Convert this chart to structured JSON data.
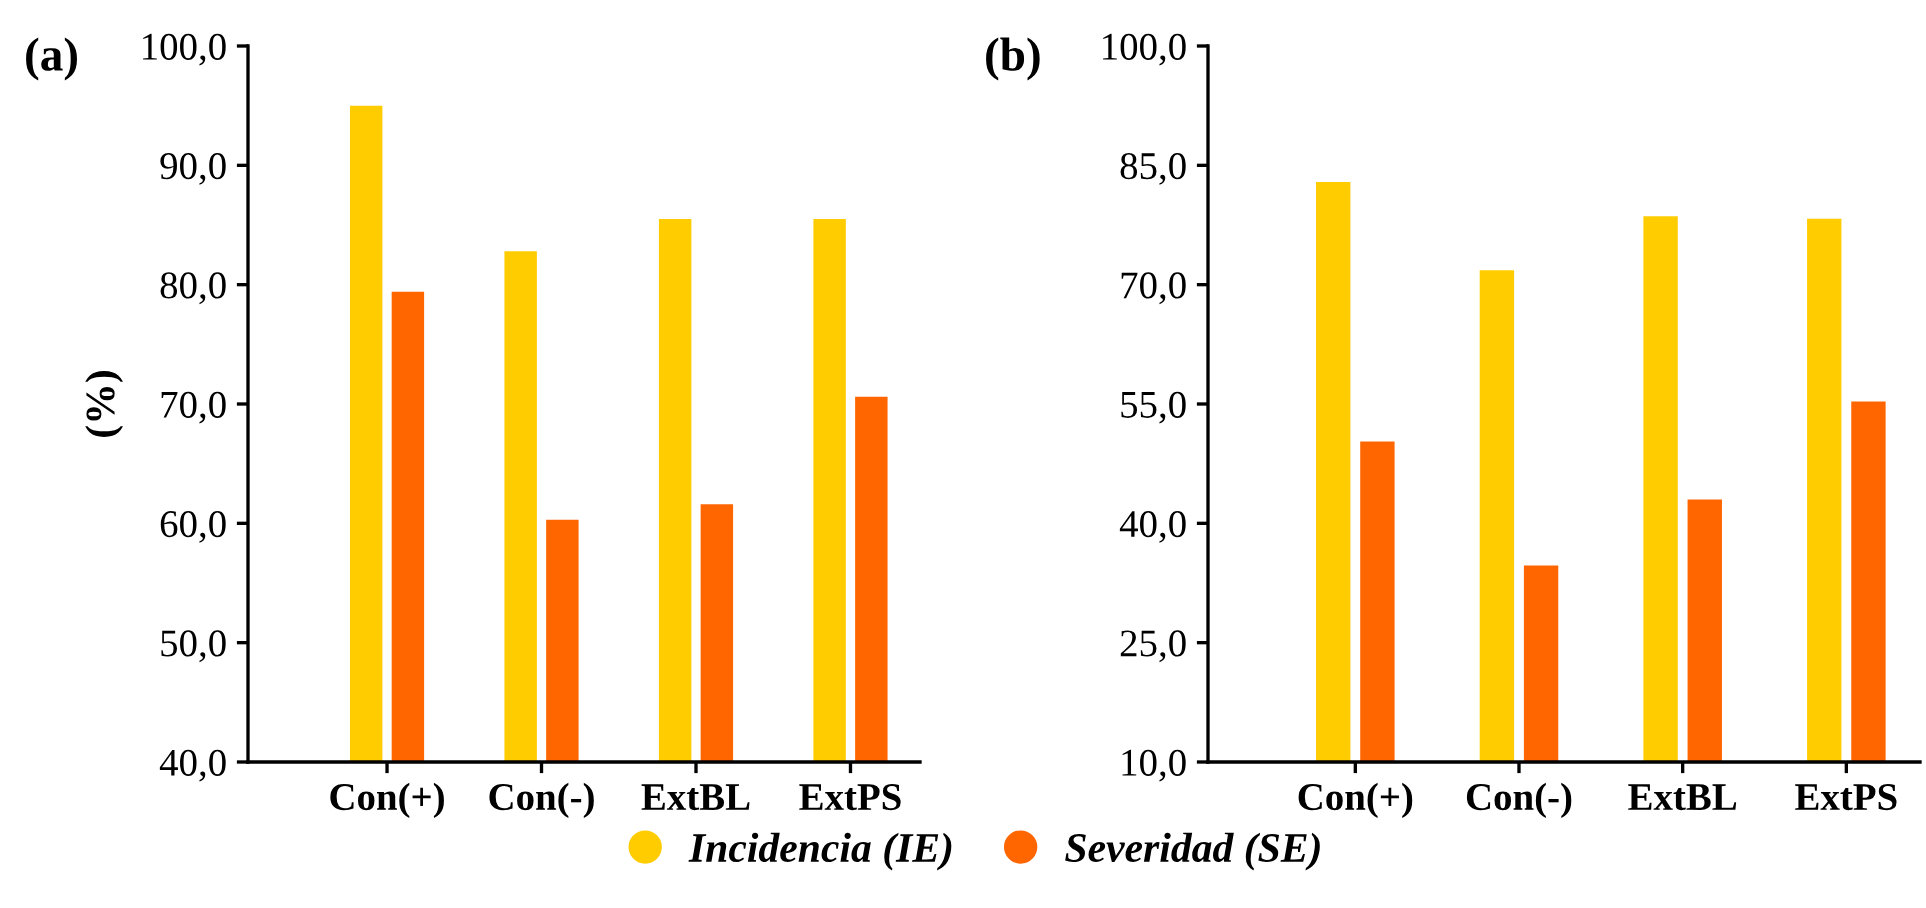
{
  "chart_data": [
    {
      "type": "bar",
      "title": "(a)",
      "ylabel": "(%)",
      "categories": [
        "Con(+)",
        "Con(-)",
        "ExtBL",
        "ExtPS"
      ],
      "series": [
        {
          "name": "Incidencia (IE)",
          "color": "#ffcc00",
          "values": [
            95.0,
            82.8,
            85.5,
            85.5
          ]
        },
        {
          "name": "Severidad (SE)",
          "color": "#ff6600",
          "values": [
            79.4,
            60.3,
            61.6,
            70.6
          ]
        }
      ],
      "ylim": [
        40,
        100
      ],
      "yticks": [
        {
          "value": 40,
          "label": "40,0"
        },
        {
          "value": 50,
          "label": "50,0"
        },
        {
          "value": 60,
          "label": "60,0"
        },
        {
          "value": 70,
          "label": "70,0"
        },
        {
          "value": 80,
          "label": "80,0"
        },
        {
          "value": 90,
          "label": "90,0"
        },
        {
          "value": 100,
          "label": "100,0"
        }
      ],
      "grid": false,
      "legend": "bottom"
    },
    {
      "type": "bar",
      "title": "(b)",
      "categories": [
        "Con(+)",
        "Con(-)",
        "ExtBL",
        "ExtPS"
      ],
      "series": [
        {
          "name": "Incidencia (IE)",
          "color": "#ffcc00",
          "values": [
            82.9,
            71.8,
            78.6,
            78.3
          ]
        },
        {
          "name": "Severidad (SE)",
          "color": "#ff6600",
          "values": [
            50.3,
            34.7,
            43.0,
            55.3
          ]
        }
      ],
      "ylim": [
        10,
        100
      ],
      "yticks": [
        {
          "value": 10,
          "label": "10,0"
        },
        {
          "value": 25,
          "label": "25,0"
        },
        {
          "value": 40,
          "label": "40,0"
        },
        {
          "value": 55,
          "label": "55,0"
        },
        {
          "value": 70,
          "label": "70,0"
        },
        {
          "value": 85,
          "label": "85,0"
        },
        {
          "value": 100,
          "label": "100,0"
        }
      ],
      "grid": false,
      "legend": "bottom"
    }
  ]
}
